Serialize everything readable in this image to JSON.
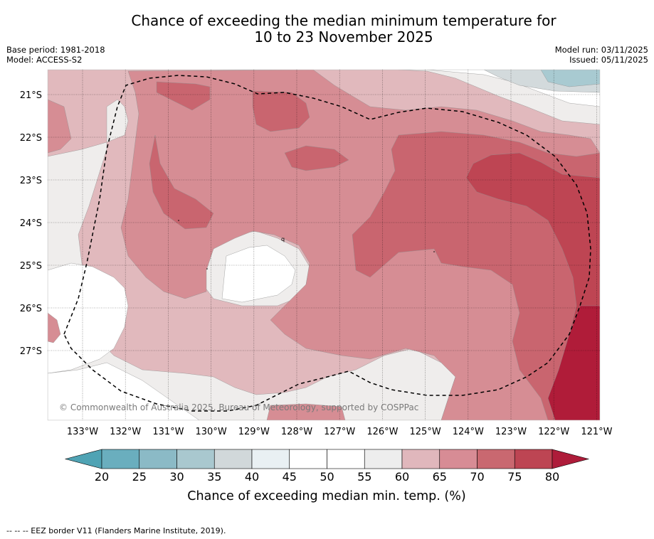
{
  "title": {
    "line1": "Chance of exceeding the median minimum temperature for",
    "line2": "10 to 23 November 2025"
  },
  "meta": {
    "base_period": "Base period: 1981-2018",
    "model": "Model: ACCESS-S2",
    "model_run": "Model run: 03/11/2025",
    "issued": "Issued: 05/11/2025"
  },
  "map": {
    "lat_labels": [
      "21°S",
      "22°S",
      "23°S",
      "24°S",
      "25°S",
      "26°S",
      "27°S"
    ],
    "lon_labels": [
      "133°W",
      "132°W",
      "131°W",
      "130°W",
      "129°W",
      "128°W",
      "127°W",
      "126°W",
      "125°W",
      "124°W",
      "123°W",
      "122°W",
      "121°W"
    ],
    "copyright": "© Commonwealth of Australia 2025, Bureau of Meteorology, supported by COSPPac",
    "island_label": "q"
  },
  "colorbar": {
    "ticks": [
      "20",
      "25",
      "30",
      "35",
      "40",
      "45",
      "50",
      "55",
      "60",
      "65",
      "70",
      "75",
      "80"
    ],
    "colors": [
      "#6aaebe",
      "#8bbac6",
      "#a9c8cf",
      "#d1d8da",
      "#e9f0f3",
      "#ffffff",
      "#ffffff",
      "#ededed",
      "#e0b7bc",
      "#d78c95",
      "#c96870",
      "#bd4553"
    ],
    "under_color": "#4fa3b4",
    "over_color": "#ae1c3a",
    "label": "Chance of exceeding median min. temp. (%)"
  },
  "palette": {
    "p55": "#efedec",
    "p60": "#e1b9bd",
    "p65": "#d68d94",
    "p70": "#c9656f",
    "p75": "#be4553",
    "p80": "#b01c39",
    "cool35": "#d3dadc",
    "cool30": "#a8cad1"
  },
  "footer": {
    "legend": "--  --  -- EEZ border V11 (Flanders Marine Institute, 2019)."
  }
}
